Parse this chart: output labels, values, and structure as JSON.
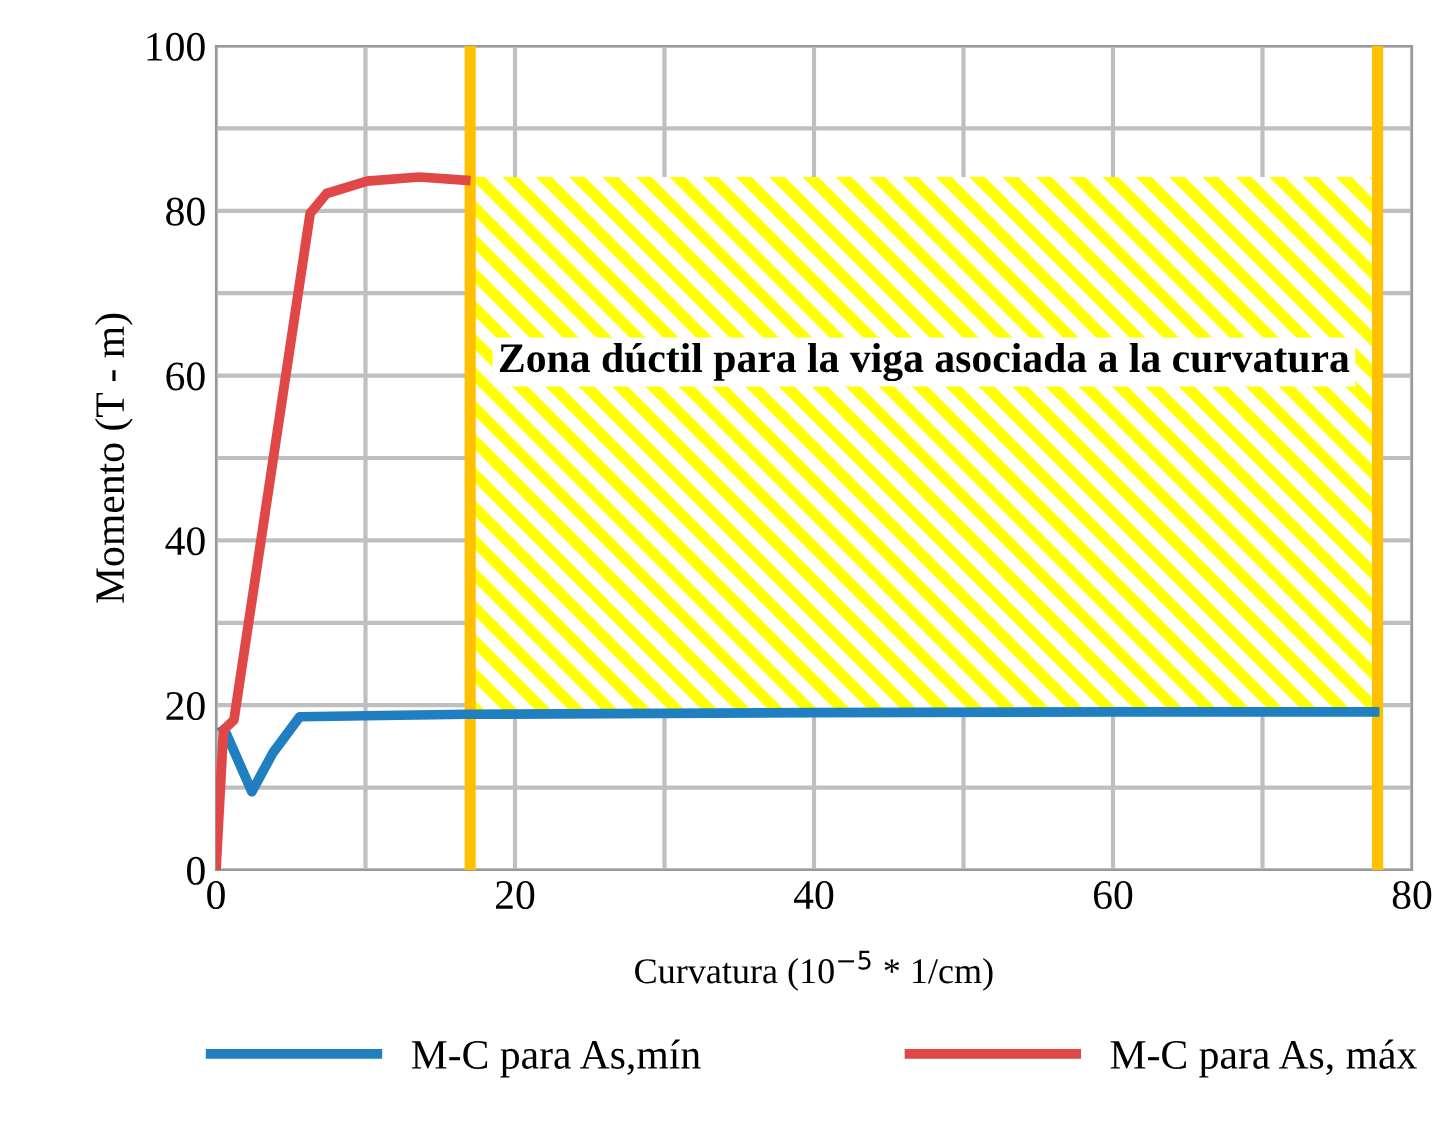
{
  "chart_data": {
    "type": "line",
    "xlabel": "Curvatura (10$^{−5}$ * 1/cm)",
    "ylabel": "Momento (T - m)",
    "xlim": [
      0,
      80
    ],
    "ylim": [
      0,
      100
    ],
    "xticks": [
      0,
      {
        "value": 10,
        "label": null
      },
      20,
      {
        "value": 30,
        "label": null
      },
      40,
      {
        "value": 50,
        "label": null
      },
      60,
      {
        "value": 70,
        "label": null
      },
      80
    ],
    "yticks": [
      0,
      {
        "value": 10,
        "label": null
      },
      20,
      {
        "value": 30,
        "label": null
      },
      40,
      {
        "value": 50,
        "label": null
      },
      60,
      {
        "value": 70,
        "label": null
      },
      80,
      {
        "value": 90,
        "label": null
      },
      100
    ],
    "grid": true,
    "legend": "bottom",
    "line_style": "solid",
    "marker": "none",
    "series": [
      {
        "name": "M-C para As,mín",
        "color": "#1f7fc0",
        "x": [
          0.5,
          0.7,
          2.4,
          3.8,
          5.6,
          16.7,
          40,
          60,
          77.5
        ],
        "values": [
          17,
          16.5,
          9.5,
          14.2,
          18.6,
          18.9,
          19.1,
          19.2,
          19.2
        ]
      },
      {
        "name": "M-C para As, máx",
        "color": "#e04848",
        "x": [
          0,
          0.5,
          1.2,
          6.3,
          7.4,
          10.1,
          13.6,
          16.7
        ],
        "values": [
          0,
          17,
          18.2,
          79.7,
          82.1,
          83.6,
          84.1,
          83.7
        ]
      }
    ],
    "ref_lines": [
      {
        "axis": "x",
        "value": 17,
        "color": "#ffc000"
      },
      {
        "axis": "x",
        "value": 77.7,
        "color": "#ffc000"
      }
    ],
    "bands": [
      {
        "axis": "x",
        "from": 17,
        "to": 77.7,
        "label": "Zona dúctil para la viga asociada a la curvatura",
        "color": "#ffff00"
      }
    ]
  }
}
